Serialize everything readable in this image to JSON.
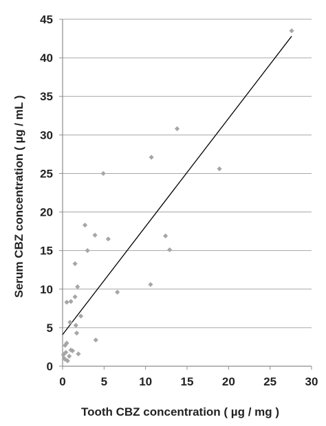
{
  "chart_data": {
    "type": "scatter",
    "title": "",
    "xlabel": "Tooth CBZ concentration ( µg / mg )",
    "ylabel": "Serum CBZ concentration ( µg / mL )",
    "xlim": [
      0,
      30
    ],
    "ylim": [
      0,
      45
    ],
    "x_ticks": [
      0,
      5,
      10,
      15,
      20,
      25,
      30
    ],
    "y_ticks": [
      0,
      5,
      10,
      15,
      20,
      25,
      30,
      35,
      40,
      45
    ],
    "grid": "horizontal",
    "marker_color": "#a6a6a6",
    "line_color": "#000000",
    "grid_color": "#a6a6a6",
    "series": [
      {
        "points": [
          [
            0.1,
            1.5
          ],
          [
            0.2,
            1.0
          ],
          [
            0.3,
            2.7
          ],
          [
            0.3,
            0.9
          ],
          [
            0.4,
            1.8
          ],
          [
            0.5,
            3.0
          ],
          [
            0.6,
            0.7
          ],
          [
            0.5,
            8.3
          ],
          [
            0.8,
            1.3
          ],
          [
            0.9,
            5.7
          ],
          [
            1.0,
            8.4
          ],
          [
            1.0,
            2.1
          ],
          [
            1.2,
            2.0
          ],
          [
            1.5,
            13.3
          ],
          [
            1.5,
            9.0
          ],
          [
            1.6,
            5.3
          ],
          [
            1.7,
            4.3
          ],
          [
            1.8,
            10.3
          ],
          [
            1.9,
            1.6
          ],
          [
            2.2,
            6.5
          ],
          [
            2.7,
            18.3
          ],
          [
            3.0,
            15.0
          ],
          [
            3.9,
            17.0
          ],
          [
            4.0,
            3.4
          ],
          [
            4.9,
            25.0
          ],
          [
            5.5,
            16.5
          ],
          [
            6.6,
            9.6
          ],
          [
            10.6,
            10.6
          ],
          [
            10.7,
            27.1
          ],
          [
            12.4,
            16.9
          ],
          [
            12.9,
            15.1
          ],
          [
            13.8,
            30.8
          ],
          [
            18.9,
            25.6
          ],
          [
            27.6,
            43.5
          ]
        ]
      }
    ],
    "trendline": {
      "x": [
        0,
        27.6
      ],
      "y": [
        4.1,
        42.8
      ]
    }
  }
}
